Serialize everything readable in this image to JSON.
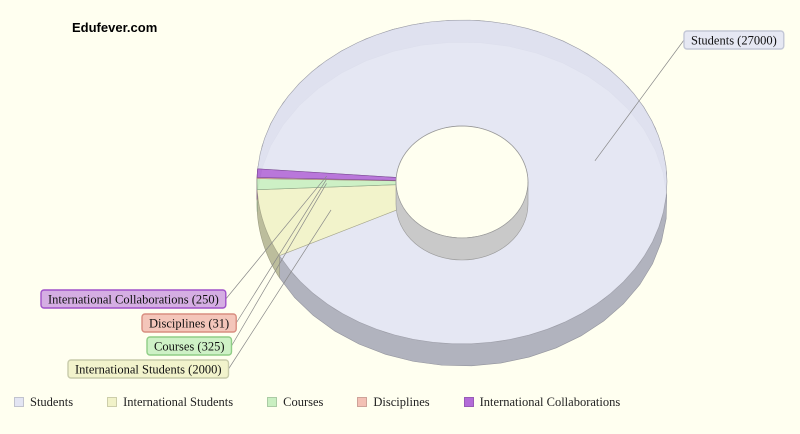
{
  "watermark": "Edufever.com",
  "chart_data": {
    "type": "pie",
    "variant": "3d-donut",
    "title": "",
    "categories": [
      "Students",
      "International Students",
      "Courses",
      "Disciplines",
      "International Collaborations"
    ],
    "values": [
      27000,
      2000,
      325,
      31,
      250
    ],
    "labels": [
      "Students  (27000)",
      "International Students (2000)",
      "Courses (325)",
      "Disciplines (31)",
      "International Collaborations  (250)"
    ],
    "colors": [
      "#e3e5f3",
      "#f1f2c8",
      "#c9efc1",
      "#f3c0b4",
      "#b36bd8"
    ],
    "label_borders": [
      "#c3c7d6",
      "#c8cbaa",
      "#8fce86",
      "#d88d80",
      "#a051c9"
    ],
    "legend": {
      "placement": "bottom-left",
      "items": [
        "Students",
        "International Students",
        "Courses",
        "Disciplines",
        "International Collaborations"
      ]
    }
  }
}
